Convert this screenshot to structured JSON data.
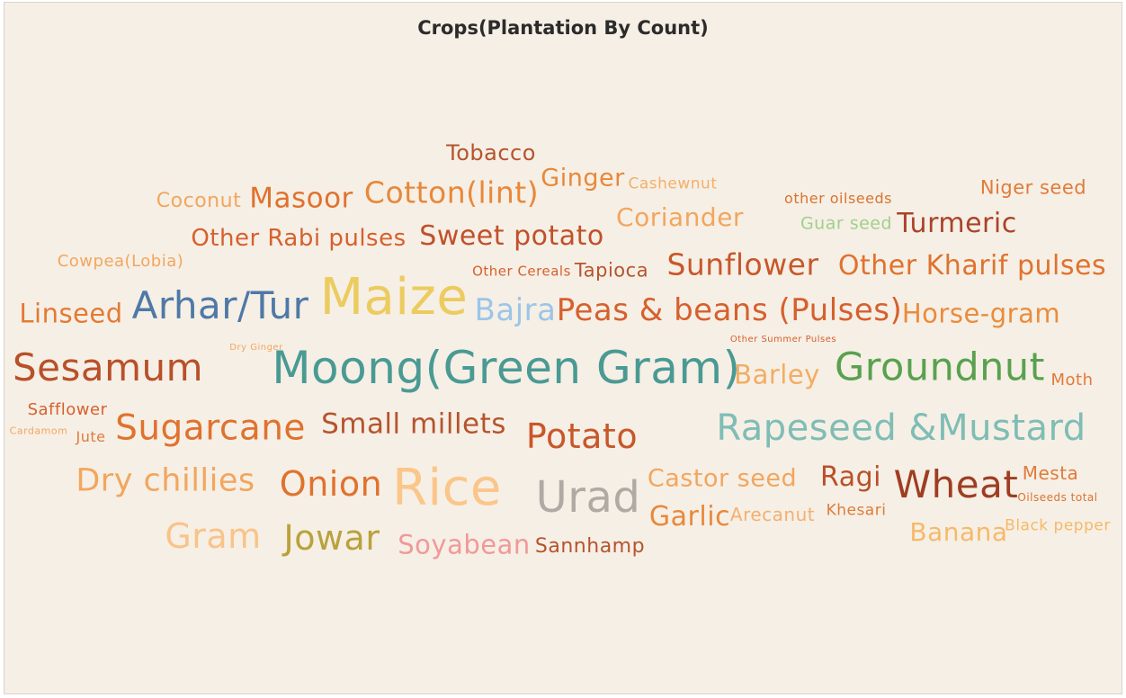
{
  "chart_data": {
    "type": "wordcloud",
    "title": "Crops(Plantation By Count)",
    "words": [
      {
        "text": "Tobacco",
        "color": "#b5542e"
      },
      {
        "text": "Ginger",
        "color": "#e8883a"
      },
      {
        "text": "Cashewnut",
        "color": "#f3b06a"
      },
      {
        "text": "Niger seed",
        "color": "#e07b3a"
      },
      {
        "text": "Coconut",
        "color": "#f2a65e"
      },
      {
        "text": "Masoor",
        "color": "#e0722e"
      },
      {
        "text": "Cotton(lint)",
        "color": "#e8883a"
      },
      {
        "text": "Coriander",
        "color": "#f2a65e"
      },
      {
        "text": "other oilseeds",
        "color": "#d9742f"
      },
      {
        "text": "Guar seed",
        "color": "#9fd08a"
      },
      {
        "text": "Turmeric",
        "color": "#a9442a"
      },
      {
        "text": "Other Rabi pulses",
        "color": "#d6602e"
      },
      {
        "text": "Sweet potato",
        "color": "#c1502a"
      },
      {
        "text": "Cowpea(Lobia)",
        "color": "#f2a65e"
      },
      {
        "text": "Other Cereals",
        "color": "#d6602e"
      },
      {
        "text": "Tapioca",
        "color": "#b5542e"
      },
      {
        "text": "Sunflower",
        "color": "#c8572a"
      },
      {
        "text": "Other Kharif pulses",
        "color": "#e0722e"
      },
      {
        "text": "Linseed",
        "color": "#e37a35"
      },
      {
        "text": "Arhar/Tur",
        "color": "#4e79a7"
      },
      {
        "text": "Maize",
        "color": "#eccb5f"
      },
      {
        "text": "Bajra",
        "color": "#9cc5e8"
      },
      {
        "text": "Peas & beans (Pulses)",
        "color": "#d6602e"
      },
      {
        "text": "Horse-gram",
        "color": "#ea8c3c"
      },
      {
        "text": "Dry Ginger",
        "color": "#f2a65e"
      },
      {
        "text": "Other Summer Pulses",
        "color": "#d6602e"
      },
      {
        "text": "Sesamum",
        "color": "#b8502a"
      },
      {
        "text": "Moong(Green Gram)",
        "color": "#4a9a94"
      },
      {
        "text": "Barley",
        "color": "#f2ad62"
      },
      {
        "text": "Groundnut",
        "color": "#59a14f"
      },
      {
        "text": "Moth",
        "color": "#e07b3a"
      },
      {
        "text": "Safflower",
        "color": "#d6602e"
      },
      {
        "text": "Cardamom",
        "color": "#f2a65e"
      },
      {
        "text": "Jute",
        "color": "#e07b3a"
      },
      {
        "text": "Sugarcane",
        "color": "#e0722e"
      },
      {
        "text": "Small millets",
        "color": "#b5542e"
      },
      {
        "text": "Potato",
        "color": "#c8572a"
      },
      {
        "text": "Rapeseed &Mustard",
        "color": "#7fbdb5"
      },
      {
        "text": "Dry chillies",
        "color": "#f2a65e"
      },
      {
        "text": "Onion",
        "color": "#e0722e"
      },
      {
        "text": "Rice",
        "color": "#fbc68a"
      },
      {
        "text": "Urad",
        "color": "#b0aaa4"
      },
      {
        "text": "Castor seed",
        "color": "#f2a65e"
      },
      {
        "text": "Ragi",
        "color": "#b8502a"
      },
      {
        "text": "Wheat",
        "color": "#9e3d22"
      },
      {
        "text": "Mesta",
        "color": "#e07b3a"
      },
      {
        "text": "Oilseeds total",
        "color": "#d9742f"
      },
      {
        "text": "Garlic",
        "color": "#e8883a"
      },
      {
        "text": "Arecanut",
        "color": "#f2b072"
      },
      {
        "text": "Khesari",
        "color": "#e07b3a"
      },
      {
        "text": "Banana",
        "color": "#f6b969"
      },
      {
        "text": "Black pepper",
        "color": "#f6b969"
      },
      {
        "text": "Gram",
        "color": "#f8c48a"
      },
      {
        "text": "Jowar",
        "color": "#b9a23c"
      },
      {
        "text": "Soyabean",
        "color": "#f09999"
      },
      {
        "text": "Sannhamp",
        "color": "#b5542e"
      }
    ]
  }
}
